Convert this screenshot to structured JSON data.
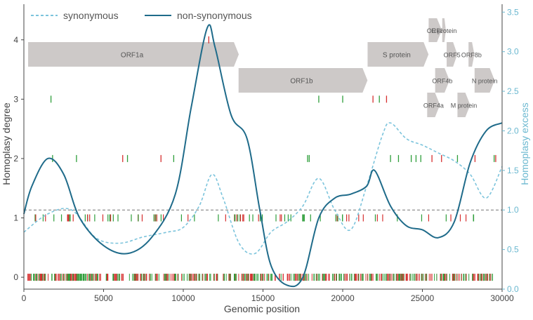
{
  "chart_data": {
    "type": "line",
    "xlabel": "Genomic position",
    "ylabel_left": "Homoplasy degree",
    "ylabel_right": "Homoplasy excess",
    "xlim": [
      0,
      30000
    ],
    "ylim_left": [
      -0.2,
      4.6
    ],
    "ylim_right": [
      0,
      3.6
    ],
    "xticks": [
      "0",
      "5000",
      "10000",
      "15000",
      "20000",
      "25000",
      "30000"
    ],
    "yticks_left": [
      "0",
      "1",
      "2",
      "3",
      "4"
    ],
    "yticks_right": [
      "0.0",
      "0.5",
      "1.0",
      "1.5",
      "2.0",
      "2.5",
      "3.0",
      "3.5"
    ],
    "legend": {
      "placement": "top-left",
      "entries": [
        "synonymous",
        "non-synonymous"
      ]
    },
    "reference_line": {
      "axis": "right",
      "value": 1.0,
      "style": "dashed"
    },
    "colors": {
      "synonymous": "#7cc4dc",
      "non_synonymous": "#1f6b8a",
      "right_axis": "#6bb8d0",
      "gene_box": "#cdc9c8",
      "syn_tick": "#2e9e3a",
      "nonsyn_tick": "#d62f2f"
    },
    "series": [
      {
        "name": "synonymous",
        "axis": "right",
        "style": "dashed",
        "x": [
          0,
          1500,
          3000,
          4500,
          6000,
          7500,
          9000,
          10000,
          11000,
          11800,
          12500,
          13500,
          14500,
          15500,
          16500,
          17500,
          18500,
          19500,
          20500,
          21500,
          22500,
          23000,
          24000,
          25000,
          26000,
          27000,
          28000,
          29000,
          30000
        ],
        "values": [
          0.72,
          0.95,
          1.0,
          0.65,
          0.58,
          0.66,
          0.72,
          0.78,
          1.05,
          1.45,
          1.15,
          0.58,
          0.45,
          0.72,
          0.85,
          1.05,
          1.4,
          1.0,
          0.75,
          1.3,
          1.95,
          2.1,
          1.9,
          1.82,
          1.72,
          1.62,
          1.45,
          1.15,
          1.55
        ]
      },
      {
        "name": "non-synonymous",
        "axis": "right",
        "style": "solid",
        "x": [
          0,
          500,
          1500,
          2500,
          3500,
          5000,
          6500,
          8000,
          9500,
          10500,
          11500,
          12000,
          13000,
          14000,
          14800,
          15500,
          16500,
          17500,
          18500,
          19500,
          20500,
          21500,
          22000,
          23000,
          24000,
          25000,
          26000,
          27000,
          28000,
          29000,
          30000
        ],
        "values": [
          0.95,
          1.3,
          1.65,
          1.45,
          0.9,
          0.55,
          0.45,
          0.65,
          1.2,
          2.3,
          3.3,
          3.05,
          2.2,
          1.9,
          1.0,
          0.3,
          0.05,
          0.15,
          0.9,
          1.15,
          1.2,
          1.3,
          1.5,
          1.05,
          0.8,
          0.75,
          0.65,
          0.85,
          1.6,
          2.0,
          2.1
        ]
      }
    ],
    "genes": [
      {
        "name": "ORF1a",
        "start": 266,
        "end": 13483,
        "row": 0
      },
      {
        "name": "ORF1b",
        "start": 13468,
        "end": 21555,
        "row": 1
      },
      {
        "name": "S protein",
        "start": 21563,
        "end": 25384,
        "row": 0
      },
      {
        "name": "ORF3",
        "start": 25393,
        "end": 26220,
        "row": -1
      },
      {
        "name": "E protein",
        "start": 26245,
        "end": 26472,
        "row": -1
      },
      {
        "name": "ORF5",
        "start": 26523,
        "end": 27191,
        "row": 0
      },
      {
        "name": "ORF8b",
        "start": 27894,
        "end": 28259,
        "row": 0
      },
      {
        "name": "ORF4b",
        "start": 25800,
        "end": 26700,
        "row": 1
      },
      {
        "name": "N protein",
        "start": 28274,
        "end": 29533,
        "row": 1
      },
      {
        "name": "ORF4a",
        "start": 25300,
        "end": 26100,
        "row": 2
      },
      {
        "name": "M protein",
        "start": 27200,
        "end": 28000,
        "row": 2
      }
    ],
    "homoplasy_sites": {
      "degree_4": [
        {
          "x": 11600,
          "kind": "nonsyn"
        }
      ],
      "degree_3": [
        {
          "x": 1700,
          "kind": "syn"
        },
        {
          "x": 18500,
          "kind": "syn"
        },
        {
          "x": 20000,
          "kind": "syn"
        },
        {
          "x": 21900,
          "kind": "nonsyn"
        },
        {
          "x": 22300,
          "kind": "syn"
        },
        {
          "x": 22750,
          "kind": "nonsyn"
        }
      ],
      "degree_2": [
        {
          "x": 1800,
          "kind": "syn"
        },
        {
          "x": 3300,
          "kind": "syn"
        },
        {
          "x": 6200,
          "kind": "nonsyn"
        },
        {
          "x": 6500,
          "kind": "syn"
        },
        {
          "x": 8600,
          "kind": "nonsyn"
        },
        {
          "x": 9400,
          "kind": "syn"
        },
        {
          "x": 17800,
          "kind": "syn"
        },
        {
          "x": 17900,
          "kind": "syn"
        },
        {
          "x": 23000,
          "kind": "syn"
        },
        {
          "x": 23500,
          "kind": "syn"
        },
        {
          "x": 24300,
          "kind": "syn"
        },
        {
          "x": 24600,
          "kind": "syn"
        },
        {
          "x": 24900,
          "kind": "syn"
        },
        {
          "x": 25600,
          "kind": "nonsyn"
        },
        {
          "x": 26200,
          "kind": "nonsyn"
        },
        {
          "x": 27200,
          "kind": "syn"
        },
        {
          "x": 28300,
          "kind": "nonsyn"
        },
        {
          "x": 29500,
          "kind": "syn"
        },
        {
          "x": 29600,
          "kind": "nonsyn"
        }
      ]
    }
  }
}
